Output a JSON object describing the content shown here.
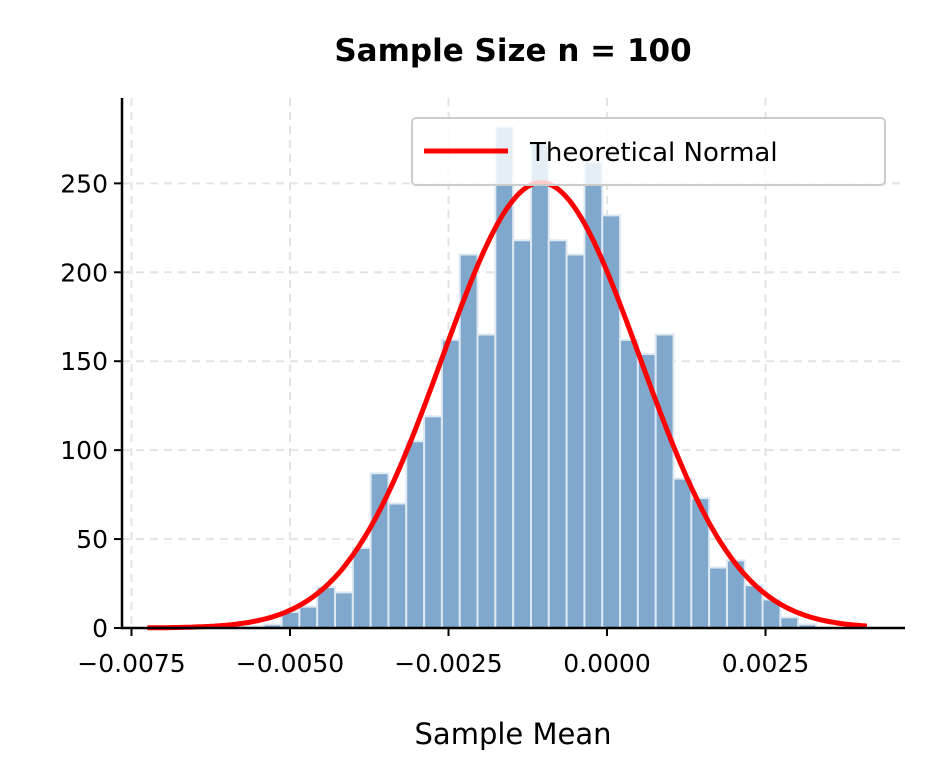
{
  "chart_data": {
    "type": "bar",
    "title": "Sample Size n = 100",
    "xlabel": "Sample Mean",
    "ylabel": "",
    "xlim": [
      -0.00765,
      0.0047
    ],
    "ylim": [
      0,
      298
    ],
    "grid": true,
    "x_ticks": [
      -0.0075,
      -0.005,
      -0.0025,
      0.0,
      0.0025
    ],
    "x_tick_labels": [
      "−0.0075",
      "−0.0050",
      "−0.0025",
      "0.0000",
      "0.0025"
    ],
    "y_ticks": [
      0,
      50,
      100,
      150,
      200,
      250
    ],
    "y_tick_labels": [
      "0",
      "50",
      "100",
      "150",
      "200",
      "250"
    ],
    "histogram": {
      "bin_start": -0.0071,
      "bin_width": 0.000281,
      "counts": [
        1,
        1,
        0,
        0,
        1,
        1,
        2,
        9,
        12,
        23,
        20,
        45,
        87,
        70,
        105,
        119,
        162,
        210,
        165,
        282,
        218,
        272,
        218,
        210,
        262,
        232,
        162,
        154,
        165,
        84,
        73,
        34,
        38,
        24,
        16,
        6,
        2
      ],
      "color": "#7fa8cc",
      "edge_color": "#dde8f2"
    },
    "series": [
      {
        "name": "Theoretical Normal",
        "type": "line",
        "mean": -0.00104,
        "std": 0.00156,
        "x_range": [
          -0.00725,
          0.0041
        ],
        "color": "#ff0000"
      }
    ],
    "legend": {
      "position": "top-right",
      "entries": [
        "Theoretical Normal"
      ]
    }
  }
}
